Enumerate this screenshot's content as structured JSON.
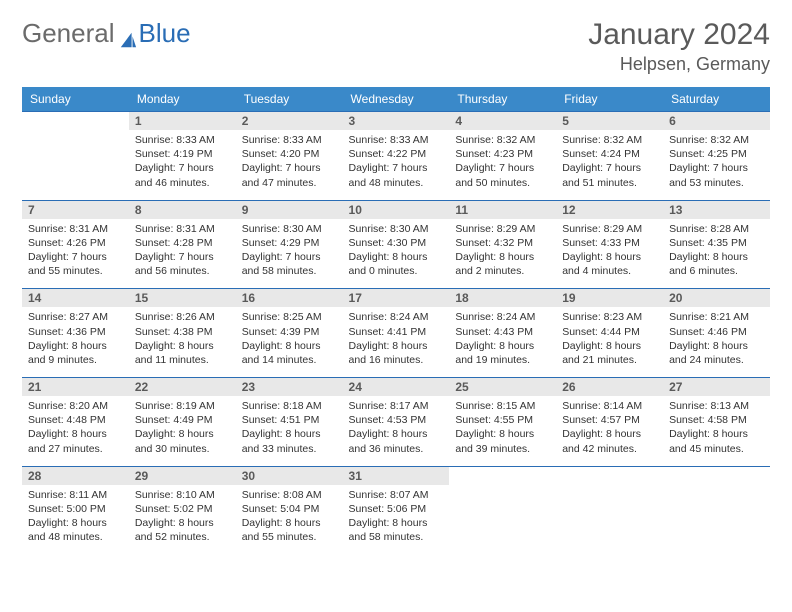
{
  "brand": {
    "part1": "General",
    "part2": "Blue"
  },
  "title": "January 2024",
  "location": "Helpsen, Germany",
  "header_color": "#3a89c9",
  "border_color": "#2a6db5",
  "daynum_bg": "#e8e8e8",
  "weekdays": [
    "Sunday",
    "Monday",
    "Tuesday",
    "Wednesday",
    "Thursday",
    "Friday",
    "Saturday"
  ],
  "weeks": [
    {
      "nums": [
        "",
        "1",
        "2",
        "3",
        "4",
        "5",
        "6"
      ],
      "cells": [
        {
          "empty": true
        },
        {
          "sunrise": "Sunrise: 8:33 AM",
          "sunset": "Sunset: 4:19 PM",
          "day1": "Daylight: 7 hours",
          "day2": "and 46 minutes."
        },
        {
          "sunrise": "Sunrise: 8:33 AM",
          "sunset": "Sunset: 4:20 PM",
          "day1": "Daylight: 7 hours",
          "day2": "and 47 minutes."
        },
        {
          "sunrise": "Sunrise: 8:33 AM",
          "sunset": "Sunset: 4:22 PM",
          "day1": "Daylight: 7 hours",
          "day2": "and 48 minutes."
        },
        {
          "sunrise": "Sunrise: 8:32 AM",
          "sunset": "Sunset: 4:23 PM",
          "day1": "Daylight: 7 hours",
          "day2": "and 50 minutes."
        },
        {
          "sunrise": "Sunrise: 8:32 AM",
          "sunset": "Sunset: 4:24 PM",
          "day1": "Daylight: 7 hours",
          "day2": "and 51 minutes."
        },
        {
          "sunrise": "Sunrise: 8:32 AM",
          "sunset": "Sunset: 4:25 PM",
          "day1": "Daylight: 7 hours",
          "day2": "and 53 minutes."
        }
      ]
    },
    {
      "nums": [
        "7",
        "8",
        "9",
        "10",
        "11",
        "12",
        "13"
      ],
      "cells": [
        {
          "sunrise": "Sunrise: 8:31 AM",
          "sunset": "Sunset: 4:26 PM",
          "day1": "Daylight: 7 hours",
          "day2": "and 55 minutes."
        },
        {
          "sunrise": "Sunrise: 8:31 AM",
          "sunset": "Sunset: 4:28 PM",
          "day1": "Daylight: 7 hours",
          "day2": "and 56 minutes."
        },
        {
          "sunrise": "Sunrise: 8:30 AM",
          "sunset": "Sunset: 4:29 PM",
          "day1": "Daylight: 7 hours",
          "day2": "and 58 minutes."
        },
        {
          "sunrise": "Sunrise: 8:30 AM",
          "sunset": "Sunset: 4:30 PM",
          "day1": "Daylight: 8 hours",
          "day2": "and 0 minutes."
        },
        {
          "sunrise": "Sunrise: 8:29 AM",
          "sunset": "Sunset: 4:32 PM",
          "day1": "Daylight: 8 hours",
          "day2": "and 2 minutes."
        },
        {
          "sunrise": "Sunrise: 8:29 AM",
          "sunset": "Sunset: 4:33 PM",
          "day1": "Daylight: 8 hours",
          "day2": "and 4 minutes."
        },
        {
          "sunrise": "Sunrise: 8:28 AM",
          "sunset": "Sunset: 4:35 PM",
          "day1": "Daylight: 8 hours",
          "day2": "and 6 minutes."
        }
      ]
    },
    {
      "nums": [
        "14",
        "15",
        "16",
        "17",
        "18",
        "19",
        "20"
      ],
      "cells": [
        {
          "sunrise": "Sunrise: 8:27 AM",
          "sunset": "Sunset: 4:36 PM",
          "day1": "Daylight: 8 hours",
          "day2": "and 9 minutes."
        },
        {
          "sunrise": "Sunrise: 8:26 AM",
          "sunset": "Sunset: 4:38 PM",
          "day1": "Daylight: 8 hours",
          "day2": "and 11 minutes."
        },
        {
          "sunrise": "Sunrise: 8:25 AM",
          "sunset": "Sunset: 4:39 PM",
          "day1": "Daylight: 8 hours",
          "day2": "and 14 minutes."
        },
        {
          "sunrise": "Sunrise: 8:24 AM",
          "sunset": "Sunset: 4:41 PM",
          "day1": "Daylight: 8 hours",
          "day2": "and 16 minutes."
        },
        {
          "sunrise": "Sunrise: 8:24 AM",
          "sunset": "Sunset: 4:43 PM",
          "day1": "Daylight: 8 hours",
          "day2": "and 19 minutes."
        },
        {
          "sunrise": "Sunrise: 8:23 AM",
          "sunset": "Sunset: 4:44 PM",
          "day1": "Daylight: 8 hours",
          "day2": "and 21 minutes."
        },
        {
          "sunrise": "Sunrise: 8:21 AM",
          "sunset": "Sunset: 4:46 PM",
          "day1": "Daylight: 8 hours",
          "day2": "and 24 minutes."
        }
      ]
    },
    {
      "nums": [
        "21",
        "22",
        "23",
        "24",
        "25",
        "26",
        "27"
      ],
      "cells": [
        {
          "sunrise": "Sunrise: 8:20 AM",
          "sunset": "Sunset: 4:48 PM",
          "day1": "Daylight: 8 hours",
          "day2": "and 27 minutes."
        },
        {
          "sunrise": "Sunrise: 8:19 AM",
          "sunset": "Sunset: 4:49 PM",
          "day1": "Daylight: 8 hours",
          "day2": "and 30 minutes."
        },
        {
          "sunrise": "Sunrise: 8:18 AM",
          "sunset": "Sunset: 4:51 PM",
          "day1": "Daylight: 8 hours",
          "day2": "and 33 minutes."
        },
        {
          "sunrise": "Sunrise: 8:17 AM",
          "sunset": "Sunset: 4:53 PM",
          "day1": "Daylight: 8 hours",
          "day2": "and 36 minutes."
        },
        {
          "sunrise": "Sunrise: 8:15 AM",
          "sunset": "Sunset: 4:55 PM",
          "day1": "Daylight: 8 hours",
          "day2": "and 39 minutes."
        },
        {
          "sunrise": "Sunrise: 8:14 AM",
          "sunset": "Sunset: 4:57 PM",
          "day1": "Daylight: 8 hours",
          "day2": "and 42 minutes."
        },
        {
          "sunrise": "Sunrise: 8:13 AM",
          "sunset": "Sunset: 4:58 PM",
          "day1": "Daylight: 8 hours",
          "day2": "and 45 minutes."
        }
      ]
    },
    {
      "nums": [
        "28",
        "29",
        "30",
        "31",
        "",
        "",
        ""
      ],
      "cells": [
        {
          "sunrise": "Sunrise: 8:11 AM",
          "sunset": "Sunset: 5:00 PM",
          "day1": "Daylight: 8 hours",
          "day2": "and 48 minutes."
        },
        {
          "sunrise": "Sunrise: 8:10 AM",
          "sunset": "Sunset: 5:02 PM",
          "day1": "Daylight: 8 hours",
          "day2": "and 52 minutes."
        },
        {
          "sunrise": "Sunrise: 8:08 AM",
          "sunset": "Sunset: 5:04 PM",
          "day1": "Daylight: 8 hours",
          "day2": "and 55 minutes."
        },
        {
          "sunrise": "Sunrise: 8:07 AM",
          "sunset": "Sunset: 5:06 PM",
          "day1": "Daylight: 8 hours",
          "day2": "and 58 minutes."
        },
        {
          "empty": true
        },
        {
          "empty": true
        },
        {
          "empty": true
        }
      ]
    }
  ]
}
